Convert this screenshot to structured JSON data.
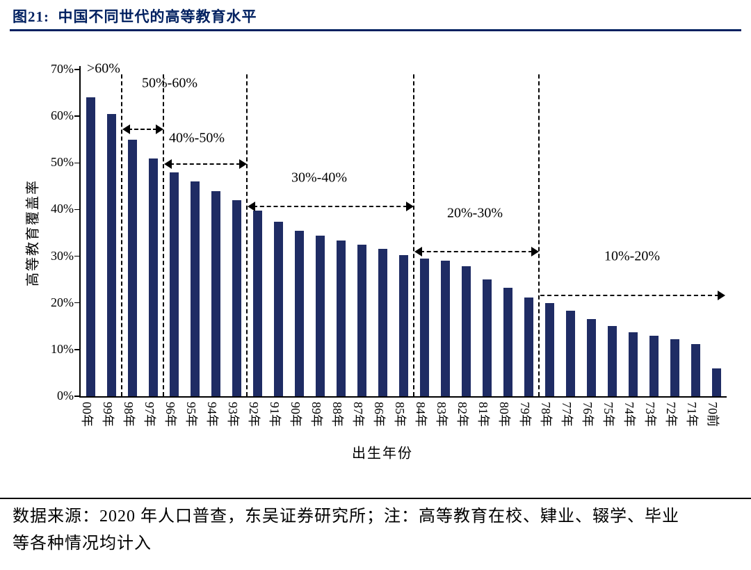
{
  "figure": {
    "title": "图21:  中国不同世代的高等教育水平",
    "accent_color": "#002060",
    "source_note": "数据来源：2020 年人口普查，东吴证券研究所；注：高等教育在校、肄业、辍学、毕业\n等各种情况均计入"
  },
  "chart_data": {
    "type": "bar",
    "title": "中国不同世代的高等教育水平",
    "xlabel": "出生年份",
    "ylabel": "高等教育覆盖率",
    "ylim": [
      0,
      70
    ],
    "grid": false,
    "legend": null,
    "bar_color": "#1F2C64",
    "y_tick_labels": [
      "0%",
      "10%",
      "20%",
      "30%",
      "40%",
      "50%",
      "60%",
      "70%"
    ],
    "categories": [
      "00年",
      "99年",
      "98年",
      "97年",
      "96年",
      "95年",
      "94年",
      "93年",
      "92年",
      "91年",
      "90年",
      "89年",
      "88年",
      "87年",
      "86年",
      "85年",
      "84年",
      "83年",
      "82年",
      "81年",
      "80年",
      "79年",
      "78年",
      "77年",
      "76年",
      "75年",
      "74年",
      "73年",
      "72年",
      "71年",
      "70前"
    ],
    "values": [
      64,
      60.5,
      55,
      51,
      48,
      46,
      44,
      42,
      39.8,
      37.4,
      35.4,
      34.4,
      33.4,
      32.4,
      31.6,
      30.3,
      29.5,
      29,
      27.8,
      25,
      23.3,
      21.2,
      20,
      18.3,
      16.5,
      15,
      13.7,
      13,
      12.2,
      11.2,
      6
    ],
    "separator_indices": [
      2,
      4,
      8,
      16,
      22
    ],
    "annotations": [
      ">60%",
      "50%-60%",
      "40%-50%",
      "30%-40%",
      "20%-30%",
      "10%-20%"
    ]
  }
}
